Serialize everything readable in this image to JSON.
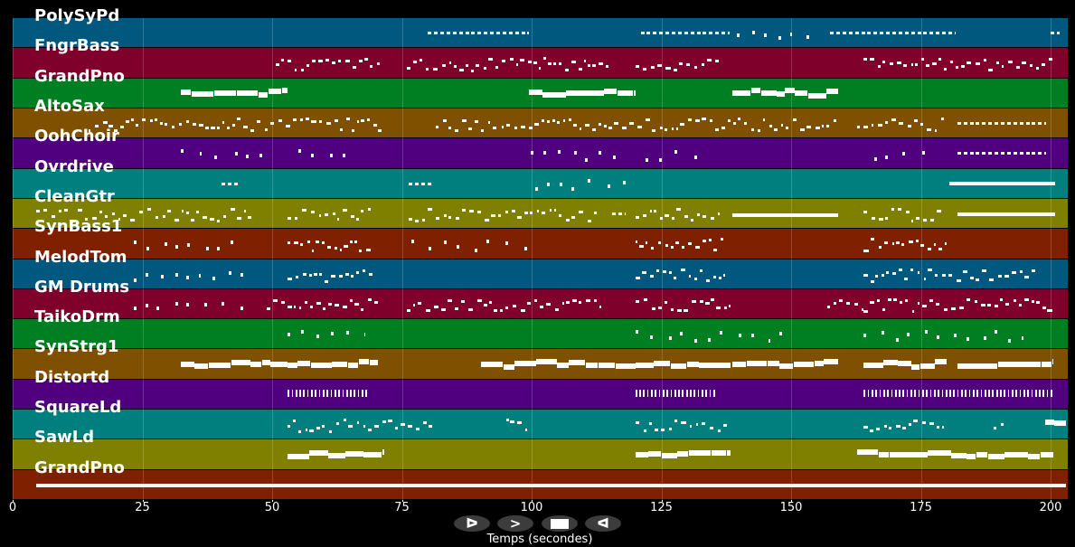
{
  "xaxis": {
    "label": "Temps (secondes)",
    "ticks": [
      0,
      25,
      50,
      75,
      100,
      125,
      150,
      175,
      200
    ],
    "max": 203.3
  },
  "controls": [
    {
      "name": "play-button",
      "icon": "play-outline-icon",
      "glyph": "ᐅ"
    },
    {
      "name": "forward-button",
      "icon": "chevron-right-icon",
      "glyph": ">"
    },
    {
      "name": "stop-button",
      "icon": "stop-icon",
      "glyph": ""
    },
    {
      "name": "rewind-button",
      "icon": "triangle-left-icon",
      "glyph": "ᐊ"
    }
  ],
  "tracks": [
    {
      "name": "PolySyPd",
      "color": "#00587f",
      "segments": [
        [
          80,
          99.5,
          "dash"
        ],
        [
          121,
          138,
          "dash"
        ],
        [
          139.5,
          154,
          "sparse"
        ],
        [
          157.5,
          181.7,
          "dash"
        ],
        [
          200,
          201.7,
          "dash"
        ]
      ]
    },
    {
      "name": "FngrBass",
      "color": "#7f002a",
      "segments": [
        [
          50.7,
          70.7,
          "small"
        ],
        [
          76,
          115.5,
          "small"
        ],
        [
          120,
          136,
          "small"
        ],
        [
          164,
          200.5,
          "small"
        ]
      ]
    },
    {
      "name": "GrandPno",
      "color": "#007f22",
      "segments": [
        [
          32.4,
          53,
          "block"
        ],
        [
          99.5,
          120,
          "block"
        ],
        [
          138.7,
          159,
          "block"
        ]
      ]
    },
    {
      "name": "AltoSax",
      "color": "#7f5000",
      "segments": [
        [
          14.6,
          71,
          "small"
        ],
        [
          81.5,
          159,
          "small"
        ],
        [
          162.7,
          179.6,
          "small"
        ],
        [
          182,
          198.8,
          "dash"
        ]
      ]
    },
    {
      "name": "OohChoir",
      "color": "#50007f",
      "segments": [
        [
          32.4,
          48,
          "sparse"
        ],
        [
          55,
          66.4,
          "sparse"
        ],
        [
          99.8,
          117.8,
          "sparse"
        ],
        [
          122,
          133.4,
          "sparse"
        ],
        [
          166,
          177,
          "sparse"
        ],
        [
          182,
          198.8,
          "dash"
        ]
      ]
    },
    {
      "name": "Ovrdrive",
      "color": "#007f7f",
      "segments": [
        [
          40.2,
          43.7,
          "dash"
        ],
        [
          76.3,
          80.8,
          "dash"
        ],
        [
          100.7,
          119.5,
          "sparse"
        ],
        [
          180.5,
          200.9,
          "line"
        ]
      ]
    },
    {
      "name": "CleanGtr",
      "color": "#7f7f00",
      "segments": [
        [
          4.5,
          46,
          "small"
        ],
        [
          53,
          69.3,
          "small"
        ],
        [
          76.3,
          113.4,
          "small"
        ],
        [
          115.5,
          118,
          "dash"
        ],
        [
          120,
          137,
          "small"
        ],
        [
          138.7,
          159,
          "line"
        ],
        [
          164,
          179.6,
          "small"
        ],
        [
          182,
          200.9,
          "line"
        ]
      ]
    },
    {
      "name": "SynBass1",
      "color": "#7f2000",
      "segments": [
        [
          23.3,
          45,
          "sparse"
        ],
        [
          53,
          69.3,
          "small"
        ],
        [
          76.8,
          99.5,
          "sparse"
        ],
        [
          120,
          137,
          "small"
        ],
        [
          164,
          180,
          "small"
        ]
      ]
    },
    {
      "name": "MelodTom",
      "color": "#00587f",
      "segments": [
        [
          23.3,
          45,
          "sparse"
        ],
        [
          53,
          70,
          "small"
        ],
        [
          120,
          137,
          "small"
        ],
        [
          164,
          197.5,
          "small"
        ]
      ]
    },
    {
      "name": "GM Drums",
      "color": "#7f002a",
      "segments": [
        [
          23.3,
          45,
          "sparse"
        ],
        [
          49,
          53,
          "small"
        ],
        [
          53,
          71,
          "small"
        ],
        [
          76,
          113.4,
          "small"
        ],
        [
          120,
          138.3,
          "small"
        ],
        [
          157,
          164,
          "small"
        ],
        [
          164,
          200.5,
          "small"
        ]
      ]
    },
    {
      "name": "TaikoDrm",
      "color": "#007f22",
      "segments": [
        [
          53,
          68,
          "sparse"
        ],
        [
          120,
          149,
          "sparse"
        ],
        [
          164,
          197.5,
          "sparse"
        ]
      ]
    },
    {
      "name": "SynStrg1",
      "color": "#7f5000",
      "segments": [
        [
          32.4,
          53,
          "block"
        ],
        [
          53,
          70.4,
          "block"
        ],
        [
          90.3,
          120,
          "block"
        ],
        [
          120,
          138.3,
          "block"
        ],
        [
          138.7,
          159,
          "block"
        ],
        [
          164,
          180,
          "block"
        ],
        [
          182,
          200.5,
          "block"
        ]
      ]
    },
    {
      "name": "Distortd",
      "color": "#50007f",
      "segments": [
        [
          53,
          68.6,
          "tall"
        ],
        [
          120,
          135.7,
          "tall"
        ],
        [
          164,
          200.5,
          "tall"
        ]
      ]
    },
    {
      "name": "SquareLd",
      "color": "#007f7f",
      "segments": [
        [
          53,
          80.8,
          "small"
        ],
        [
          95.1,
          99,
          "small"
        ],
        [
          120,
          138.3,
          "small"
        ],
        [
          164,
          179.6,
          "small"
        ],
        [
          189,
          191,
          "small"
        ],
        [
          199,
          203,
          "block"
        ]
      ]
    },
    {
      "name": "SawLd",
      "color": "#7f7f00",
      "segments": [
        [
          53,
          71.6,
          "block"
        ],
        [
          120,
          138.3,
          "block"
        ],
        [
          162.7,
          200.5,
          "block"
        ]
      ]
    },
    {
      "name": "GrandPno",
      "color": "#7f2000",
      "segments": [
        [
          4.5,
          32.4,
          "line"
        ],
        [
          32.4,
          203,
          "line"
        ]
      ]
    }
  ]
}
